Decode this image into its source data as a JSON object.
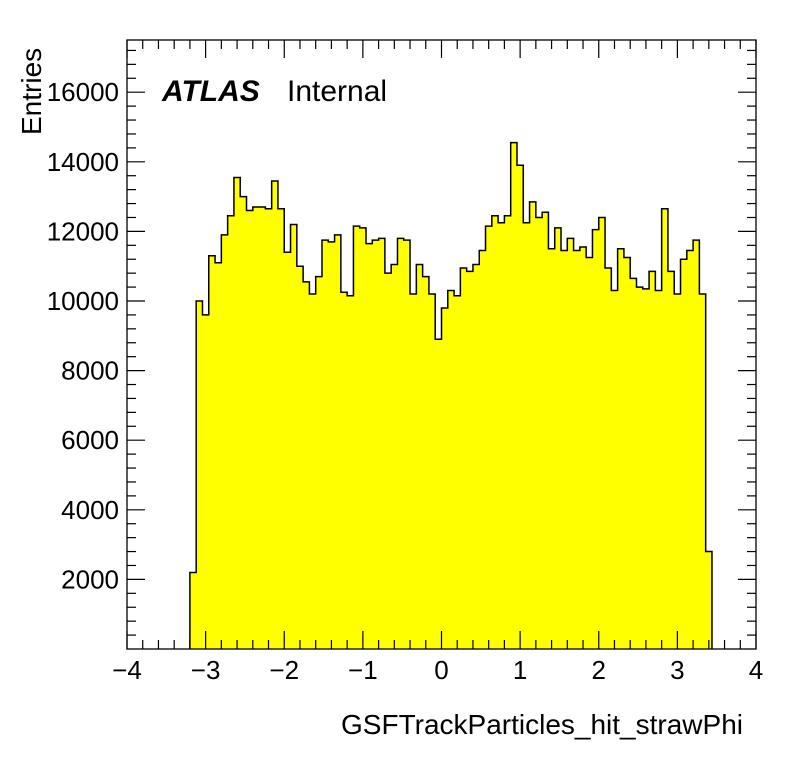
{
  "chart_data": {
    "type": "bar",
    "title": "",
    "xlabel": "GSFTrackParticles_hit_strawPhi",
    "ylabel": "Entries",
    "xlim": [
      -4,
      4
    ],
    "ylim": [
      0,
      17500
    ],
    "bin_width": 0.08,
    "x_ticks": [
      -4,
      -3,
      -2,
      -1,
      0,
      1,
      2,
      3,
      4
    ],
    "x_tick_labels": [
      "−4",
      "−3",
      "−2",
      "−1",
      "0",
      "1",
      "2",
      "3",
      "4"
    ],
    "y_ticks": [
      2000,
      4000,
      6000,
      8000,
      10000,
      12000,
      14000,
      16000
    ],
    "y_tick_labels": [
      "2000",
      "4000",
      "6000",
      "8000",
      "10000",
      "12000",
      "14000",
      "16000"
    ],
    "fill_color": "#ffff00",
    "line_color": "#000000",
    "grid": false,
    "legend": "none",
    "annotation": {
      "bold": "ATLAS",
      "normal": "Internal"
    },
    "bins": [
      {
        "x": -3.2,
        "y": 2200
      },
      {
        "x": -3.12,
        "y": 10000
      },
      {
        "x": -3.04,
        "y": 9600
      },
      {
        "x": -2.96,
        "y": 11300
      },
      {
        "x": -2.88,
        "y": 11100
      },
      {
        "x": -2.8,
        "y": 11900
      },
      {
        "x": -2.72,
        "y": 12450
      },
      {
        "x": -2.64,
        "y": 13550
      },
      {
        "x": -2.56,
        "y": 13000
      },
      {
        "x": -2.48,
        "y": 12600
      },
      {
        "x": -2.4,
        "y": 12700
      },
      {
        "x": -2.32,
        "y": 12700
      },
      {
        "x": -2.24,
        "y": 12650
      },
      {
        "x": -2.16,
        "y": 13450
      },
      {
        "x": -2.08,
        "y": 12650
      },
      {
        "x": -2.0,
        "y": 11400
      },
      {
        "x": -1.92,
        "y": 12200
      },
      {
        "x": -1.84,
        "y": 11000
      },
      {
        "x": -1.76,
        "y": 10550
      },
      {
        "x": -1.68,
        "y": 10200
      },
      {
        "x": -1.6,
        "y": 10700
      },
      {
        "x": -1.52,
        "y": 11750
      },
      {
        "x": -1.44,
        "y": 11700
      },
      {
        "x": -1.36,
        "y": 11900
      },
      {
        "x": -1.28,
        "y": 10250
      },
      {
        "x": -1.2,
        "y": 10150
      },
      {
        "x": -1.12,
        "y": 12150
      },
      {
        "x": -1.04,
        "y": 12100
      },
      {
        "x": -0.96,
        "y": 11650
      },
      {
        "x": -0.88,
        "y": 11750
      },
      {
        "x": -0.8,
        "y": 11800
      },
      {
        "x": -0.72,
        "y": 10800
      },
      {
        "x": -0.64,
        "y": 11050
      },
      {
        "x": -0.56,
        "y": 11800
      },
      {
        "x": -0.48,
        "y": 11750
      },
      {
        "x": -0.4,
        "y": 10200
      },
      {
        "x": -0.32,
        "y": 11050
      },
      {
        "x": -0.24,
        "y": 10700
      },
      {
        "x": -0.16,
        "y": 10200
      },
      {
        "x": -0.08,
        "y": 8900
      },
      {
        "x": 0.0,
        "y": 9800
      },
      {
        "x": 0.08,
        "y": 10300
      },
      {
        "x": 0.16,
        "y": 10150
      },
      {
        "x": 0.24,
        "y": 10950
      },
      {
        "x": 0.32,
        "y": 10850
      },
      {
        "x": 0.4,
        "y": 11050
      },
      {
        "x": 0.48,
        "y": 11450
      },
      {
        "x": 0.56,
        "y": 12150
      },
      {
        "x": 0.64,
        "y": 12450
      },
      {
        "x": 0.72,
        "y": 12250
      },
      {
        "x": 0.8,
        "y": 12450
      },
      {
        "x": 0.88,
        "y": 14550
      },
      {
        "x": 0.96,
        "y": 13900
      },
      {
        "x": 1.04,
        "y": 12250
      },
      {
        "x": 1.12,
        "y": 12850
      },
      {
        "x": 1.2,
        "y": 12400
      },
      {
        "x": 1.28,
        "y": 12550
      },
      {
        "x": 1.36,
        "y": 11500
      },
      {
        "x": 1.44,
        "y": 12100
      },
      {
        "x": 1.52,
        "y": 11450
      },
      {
        "x": 1.6,
        "y": 11800
      },
      {
        "x": 1.68,
        "y": 11450
      },
      {
        "x": 1.76,
        "y": 11550
      },
      {
        "x": 1.84,
        "y": 11250
      },
      {
        "x": 1.92,
        "y": 12050
      },
      {
        "x": 2.0,
        "y": 12400
      },
      {
        "x": 2.08,
        "y": 10950
      },
      {
        "x": 2.16,
        "y": 10300
      },
      {
        "x": 2.24,
        "y": 11500
      },
      {
        "x": 2.32,
        "y": 11250
      },
      {
        "x": 2.4,
        "y": 10650
      },
      {
        "x": 2.48,
        "y": 10400
      },
      {
        "x": 2.56,
        "y": 10350
      },
      {
        "x": 2.64,
        "y": 10850
      },
      {
        "x": 2.72,
        "y": 10300
      },
      {
        "x": 2.8,
        "y": 12650
      },
      {
        "x": 2.88,
        "y": 10850
      },
      {
        "x": 2.96,
        "y": 10200
      },
      {
        "x": 3.04,
        "y": 11200
      },
      {
        "x": 3.12,
        "y": 11450
      },
      {
        "x": 3.2,
        "y": 11750
      },
      {
        "x": 3.28,
        "y": 10200
      },
      {
        "x": 3.36,
        "y": 2800
      }
    ]
  }
}
